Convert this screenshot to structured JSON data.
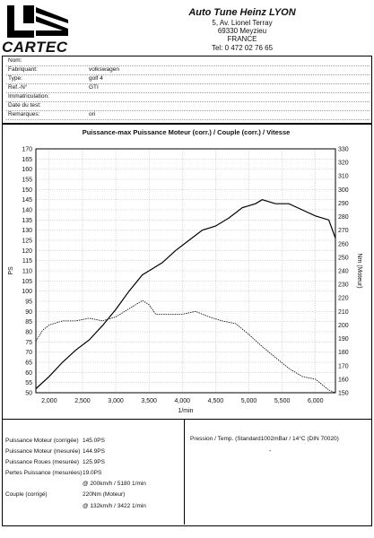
{
  "header": {
    "logo_text": "CARTEC",
    "company_name": "Auto Tune Heinz LYON",
    "address_line1": "5, Av. Lionel Terray",
    "address_line2": "69330 Meyzieu",
    "country": "FRANCE",
    "phone": "Tel: 0 472 02 76 65"
  },
  "vehicle": {
    "rows": [
      {
        "label": "Nom:",
        "value": ""
      },
      {
        "label": "Fabriquant:",
        "value": "volkswagen"
      },
      {
        "label": "Type:",
        "value": "golf 4"
      },
      {
        "label": "Ref.-N°",
        "value": "GTI"
      },
      {
        "label": "Immatriculation:",
        "value": ""
      },
      {
        "label": "Date du test:",
        "value": ""
      },
      {
        "label": "Remarques:",
        "value": "ori"
      }
    ]
  },
  "chart_data": {
    "type": "line",
    "title": "Puissance-max Puissance Moteur (corr.) / Couple (corr.) / Vitesse",
    "xlabel": "1/min",
    "ylabel": "PS",
    "y2label": "Nm (Moteur)",
    "xlim": [
      1800,
      6300
    ],
    "ylim": [
      50,
      170
    ],
    "y2lim": [
      150,
      330
    ],
    "x_ticks": [
      "2,000",
      "2,500",
      "3,000",
      "3,500",
      "4,000",
      "4,500",
      "5,000",
      "5,500",
      "6,000"
    ],
    "y_ticks": [
      "50",
      "55",
      "60",
      "65",
      "70",
      "75",
      "80",
      "85",
      "90",
      "95",
      "100",
      "105",
      "110",
      "115",
      "120",
      "125",
      "130",
      "135",
      "140",
      "145",
      "150",
      "155",
      "160",
      "165",
      "170"
    ],
    "y2_ticks": [
      "150",
      "160",
      "170",
      "180",
      "190",
      "200",
      "210",
      "220",
      "230",
      "240",
      "250",
      "260",
      "270",
      "280",
      "290",
      "300",
      "310",
      "320",
      "330"
    ],
    "grid": true,
    "series": [
      {
        "axis": "left",
        "style": "solid",
        "x": [
          1800,
          2000,
          2200,
          2400,
          2600,
          2800,
          3000,
          3200,
          3400,
          3500,
          3700,
          3900,
          4100,
          4300,
          4500,
          4700,
          4900,
          5100,
          5200,
          5400,
          5600,
          5800,
          6000,
          6200,
          6300
        ],
        "values": [
          52,
          58,
          65,
          71,
          76,
          83,
          91,
          100,
          108,
          110,
          114,
          120,
          125,
          130,
          132,
          136,
          141,
          143,
          145,
          143,
          143,
          140,
          137,
          135,
          126
        ]
      },
      {
        "axis": "right",
        "style": "dotted",
        "x": [
          1800,
          1900,
          2000,
          2200,
          2400,
          2600,
          2800,
          3000,
          3200,
          3400,
          3500,
          3600,
          3800,
          4000,
          4200,
          4400,
          4600,
          4800,
          5000,
          5200,
          5400,
          5600,
          5800,
          6000,
          6200,
          6300
        ],
        "values": [
          188,
          196,
          200,
          203,
          203,
          205,
          203,
          206,
          212,
          218,
          215,
          208,
          208,
          208,
          210,
          206,
          203,
          201,
          193,
          184,
          176,
          168,
          162,
          160,
          152,
          150
        ]
      }
    ]
  },
  "results": {
    "rows": [
      {
        "label": "Puissance Moteur (corrigée)",
        "value": "145.0PS"
      },
      {
        "label": "Puissance Moteur (mesurée)",
        "value": "144.9PS"
      },
      {
        "label": "Puissance Roues (mesurée)",
        "value": "125.9PS"
      },
      {
        "label": "Pertes Puissance (mesurées)",
        "value": "19.0PS"
      },
      {
        "label": "",
        "value": "@ 200km/h / 5180 1/min"
      },
      {
        "label": "Couple (corrigé)",
        "value": "220Nm (Moteur)"
      },
      {
        "label": "",
        "value": "@ 132km/h / 3422 1/min"
      }
    ],
    "environment_text": "Pression / Temp. (Standard1002mBar / 14°C    (DIN 70020)",
    "environment_dash": "-"
  }
}
